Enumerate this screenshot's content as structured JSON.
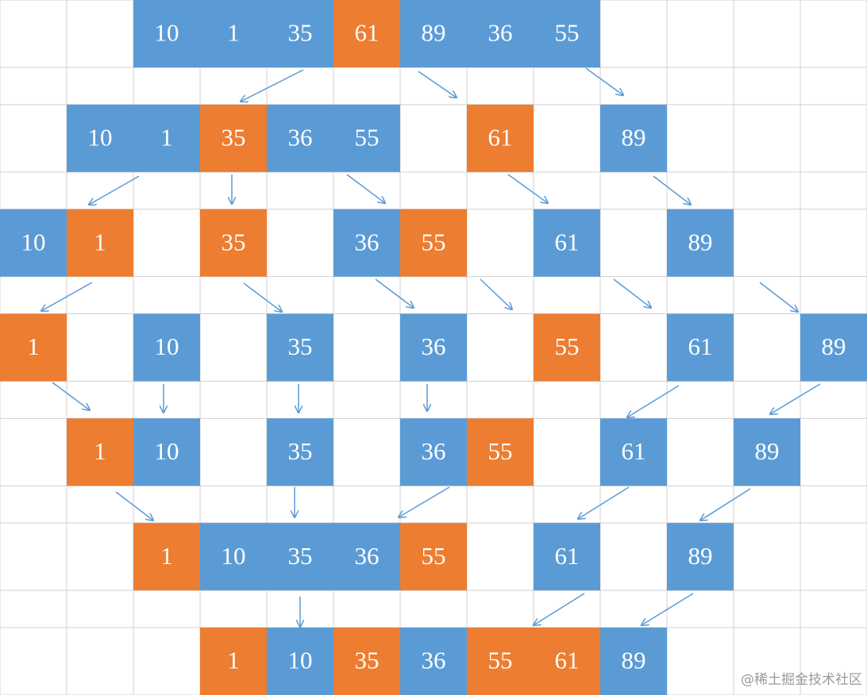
{
  "rows": [
    [
      "10",
      "1",
      "35",
      "61",
      "89",
      "36",
      "55"
    ],
    [
      "10",
      "1",
      "35",
      "36",
      "55",
      "61",
      "89"
    ],
    [
      "10",
      "1",
      "35",
      "36",
      "55",
      "61",
      "89"
    ],
    [
      "1",
      "10",
      "35",
      "36",
      "55",
      "61",
      "89"
    ],
    [
      "1",
      "10",
      "35",
      "36",
      "55",
      "61",
      "89"
    ],
    [
      "1",
      "10",
      "35",
      "36",
      "55",
      "61",
      "89"
    ],
    [
      "1",
      "10",
      "35",
      "36",
      "55",
      "61",
      "89"
    ]
  ],
  "watermark": "@稀土掘金技术社区"
}
